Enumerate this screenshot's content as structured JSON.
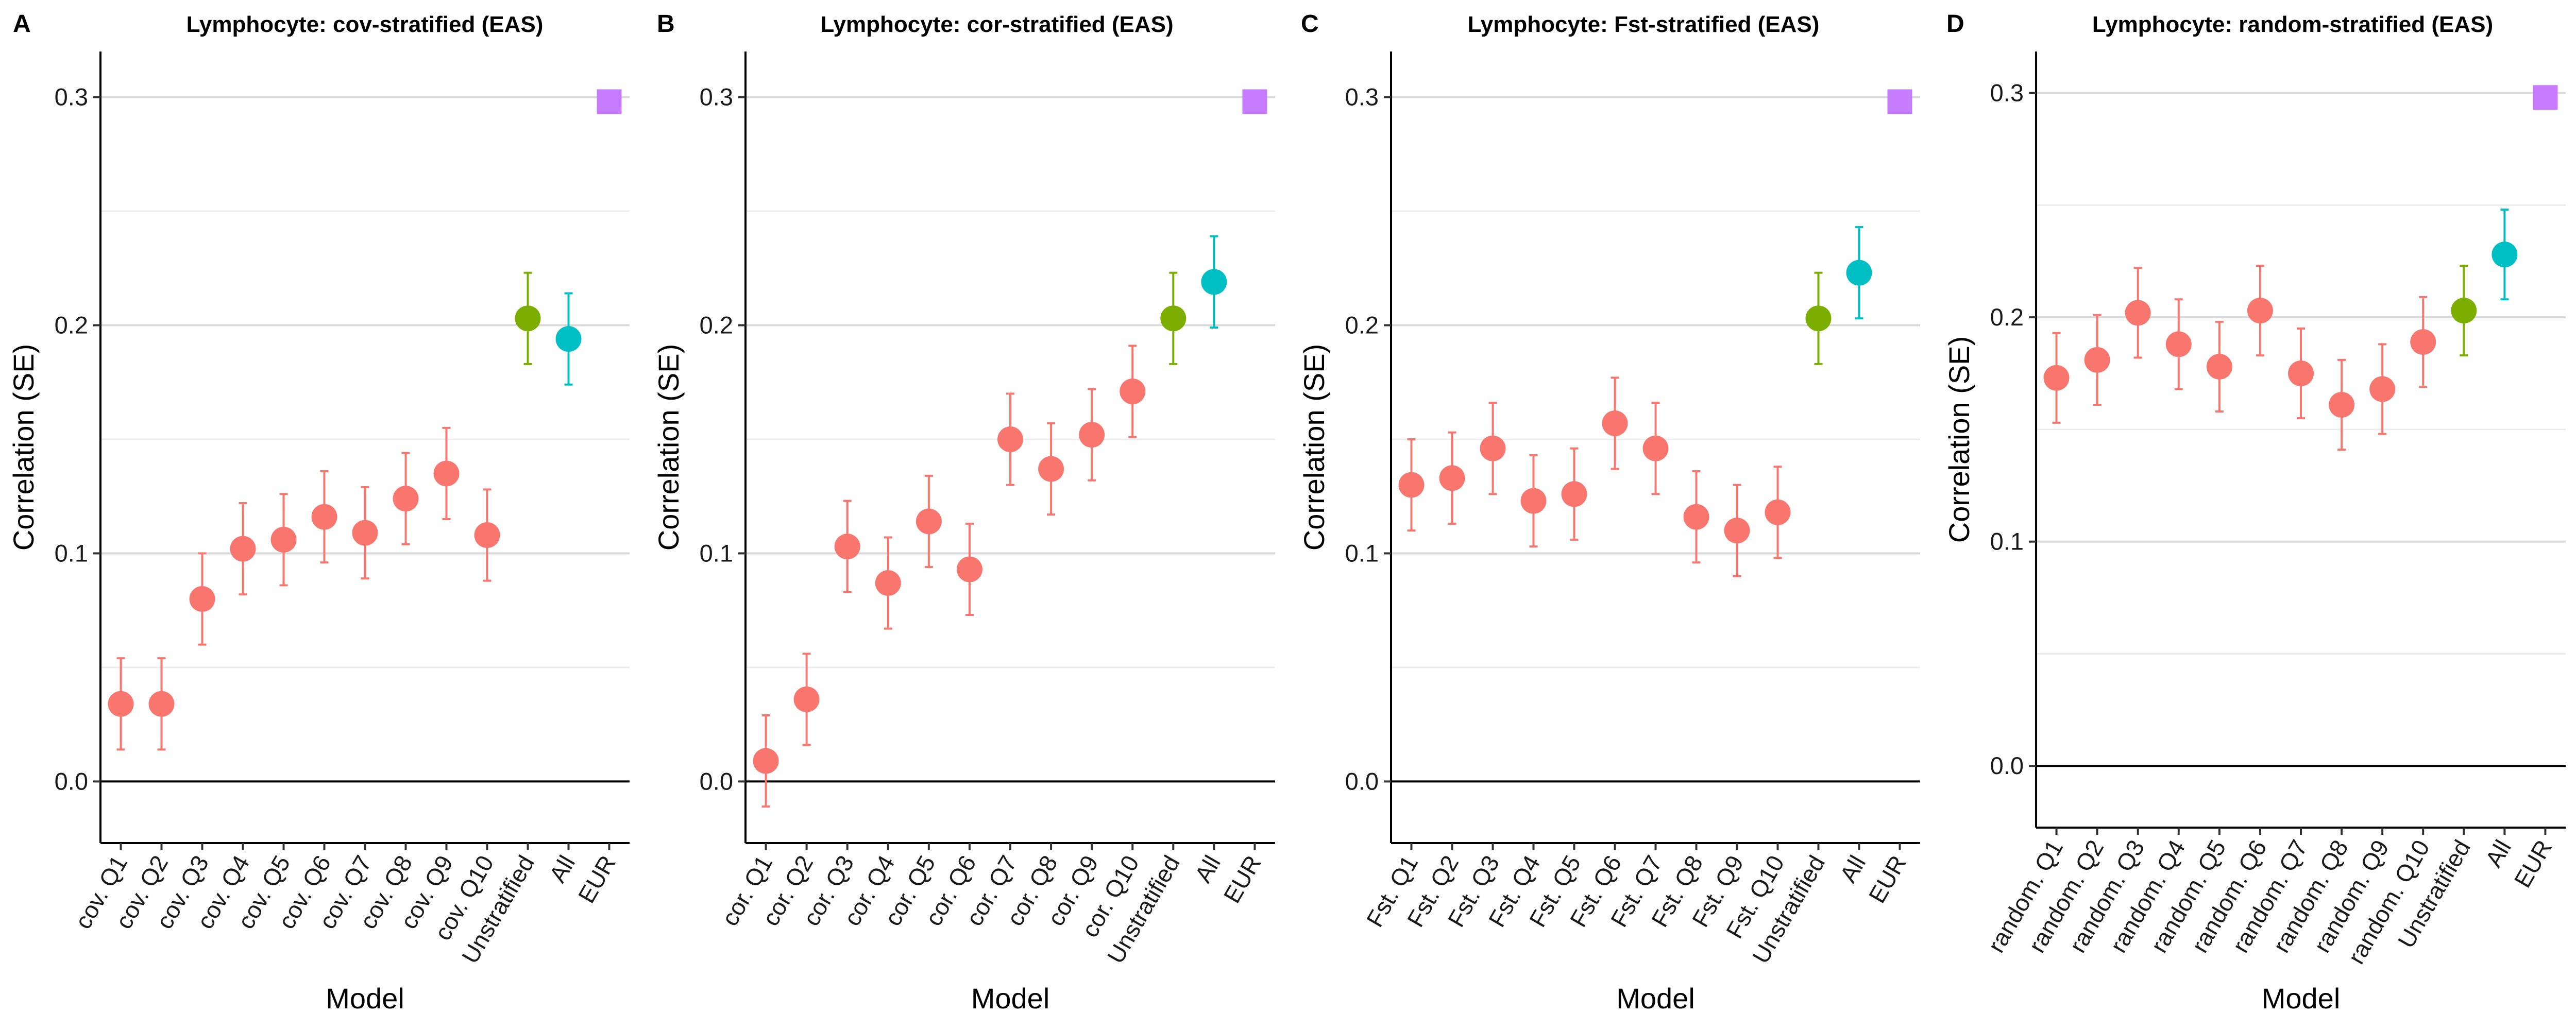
{
  "colors": {
    "quantile": "#F8766D",
    "Unstratified": "#7CAE00",
    "All": "#00BFC4",
    "EUR": "#C77CFF"
  },
  "chart_data": [
    {
      "type": "scatter",
      "panel": "A",
      "title": "Lymphocyte: cov-stratified (EAS)",
      "xlabel": "Model",
      "ylabel": "Correlation (SE)",
      "ylim": [
        -0.027,
        0.32
      ],
      "yticks": [
        "0.0",
        "0.1",
        "0.2",
        "0.3"
      ],
      "categories": [
        "cov. Q1",
        "cov. Q2",
        "cov. Q3",
        "cov. Q4",
        "cov. Q5",
        "cov. Q6",
        "cov. Q7",
        "cov. Q8",
        "cov. Q9",
        "cov. Q10",
        "Unstratified",
        "All",
        "EUR"
      ],
      "values": [
        0.034,
        0.034,
        0.08,
        0.102,
        0.106,
        0.116,
        0.109,
        0.124,
        0.135,
        0.108,
        0.203,
        0.194,
        0.298
      ],
      "se": [
        0.02,
        0.02,
        0.02,
        0.02,
        0.02,
        0.02,
        0.02,
        0.02,
        0.02,
        0.02,
        0.02,
        0.02,
        0
      ]
    },
    {
      "type": "scatter",
      "panel": "B",
      "title": "Lymphocyte: cor-stratified (EAS)",
      "xlabel": "Model",
      "ylabel": "Correlation (SE)",
      "ylim": [
        -0.027,
        0.32
      ],
      "yticks": [
        "0.0",
        "0.1",
        "0.2",
        "0.3"
      ],
      "categories": [
        "cor. Q1",
        "cor. Q2",
        "cor. Q3",
        "cor. Q4",
        "cor. Q5",
        "cor. Q6",
        "cor. Q7",
        "cor. Q8",
        "cor. Q9",
        "cor. Q10",
        "Unstratified",
        "All",
        "EUR"
      ],
      "values": [
        0.009,
        0.036,
        0.103,
        0.087,
        0.114,
        0.093,
        0.15,
        0.137,
        0.152,
        0.171,
        0.203,
        0.219,
        0.298
      ],
      "se": [
        0.02,
        0.02,
        0.02,
        0.02,
        0.02,
        0.02,
        0.02,
        0.02,
        0.02,
        0.02,
        0.02,
        0.02,
        0
      ]
    },
    {
      "type": "scatter",
      "panel": "C",
      "title": "Lymphocyte: Fst-stratified (EAS)",
      "xlabel": "Model",
      "ylabel": "Correlation (SE)",
      "ylim": [
        -0.027,
        0.32
      ],
      "yticks": [
        "0.0",
        "0.1",
        "0.2",
        "0.3"
      ],
      "categories": [
        "Fst. Q1",
        "Fst. Q2",
        "Fst. Q3",
        "Fst. Q4",
        "Fst. Q5",
        "Fst. Q6",
        "Fst. Q7",
        "Fst. Q8",
        "Fst. Q9",
        "Fst. Q10",
        "Unstratified",
        "All",
        "EUR"
      ],
      "values": [
        0.13,
        0.133,
        0.146,
        0.123,
        0.126,
        0.157,
        0.146,
        0.116,
        0.11,
        0.118,
        0.203,
        0.223,
        0.298
      ],
      "se": [
        0.02,
        0.02,
        0.02,
        0.02,
        0.02,
        0.02,
        0.02,
        0.02,
        0.02,
        0.02,
        0.02,
        0.02,
        0
      ]
    },
    {
      "type": "scatter",
      "panel": "D",
      "title": "Lymphocyte: random-stratified (EAS)",
      "xlabel": "Model",
      "ylabel": "Correlation (SE)",
      "ylim": [
        -0.027,
        0.32
      ],
      "yticks": [
        "0.0",
        "0.1",
        "0.2",
        "0.3"
      ],
      "categories": [
        "random. Q1",
        "random. Q2",
        "random. Q3",
        "random. Q4",
        "random. Q5",
        "random. Q6",
        "random. Q7",
        "random. Q8",
        "random. Q9",
        "random. Q10",
        "Unstratified",
        "All",
        "EUR"
      ],
      "values": [
        0.173,
        0.181,
        0.202,
        0.188,
        0.178,
        0.203,
        0.175,
        0.161,
        0.168,
        0.189,
        0.203,
        0.228,
        0.298
      ],
      "se": [
        0.02,
        0.02,
        0.02,
        0.02,
        0.02,
        0.02,
        0.02,
        0.02,
        0.02,
        0.02,
        0.02,
        0.02,
        0
      ]
    }
  ]
}
